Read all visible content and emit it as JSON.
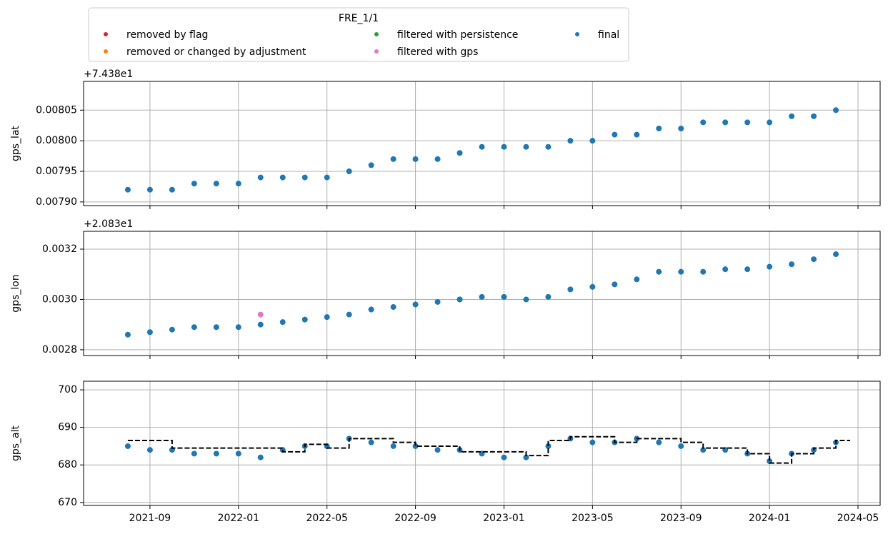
{
  "chart_data": [
    {
      "type": "scatter",
      "ylabel": "gps_lat",
      "offset_text": "+7.438e1",
      "legend_title": "FRE_1/1",
      "legend": "upper center",
      "xlim": [
        "2021-06",
        "2024-06"
      ],
      "xticks": [
        "2021-09",
        "2022-01",
        "2022-05",
        "2022-09",
        "2023-01",
        "2023-05",
        "2023-09",
        "2024-01",
        "2024-05"
      ],
      "show_xticklabels": false,
      "ylim": [
        0.007894,
        0.008097
      ],
      "yticks": [
        {
          "value": 0.0079,
          "label": "0.00790"
        },
        0.00795,
        {
          "value": 0.008,
          "label": "0.00800"
        },
        0.00805
      ],
      "grid": true,
      "series": [
        {
          "name": "removed by flag",
          "color": "#d62728",
          "x": [],
          "values": []
        },
        {
          "name": "removed or changed by adjustment",
          "color": "#ff7f0e",
          "x": [],
          "values": []
        },
        {
          "name": "filtered with persistence",
          "color": "#2ca02c",
          "x": [],
          "values": []
        },
        {
          "name": "filtered with gps",
          "color": "#e377c2",
          "x": [],
          "values": []
        },
        {
          "name": "final",
          "color": "#1f77b4",
          "x": [
            "2021-08",
            "2021-09",
            "2021-10",
            "2021-11",
            "2021-12",
            "2022-01",
            "2022-02",
            "2022-03",
            "2022-04",
            "2022-05",
            "2022-06",
            "2022-07",
            "2022-08",
            "2022-09",
            "2022-10",
            "2022-11",
            "2022-12",
            "2023-01",
            "2023-02",
            "2023-03",
            "2023-04",
            "2023-05",
            "2023-06",
            "2023-07",
            "2023-08",
            "2023-09",
            "2023-10",
            "2023-11",
            "2023-12",
            "2024-01",
            "2024-02",
            "2024-03",
            "2024-04"
          ],
          "values": [
            0.00792,
            0.00792,
            0.00792,
            0.00793,
            0.00793,
            0.00793,
            0.00794,
            0.00794,
            0.00794,
            0.00794,
            0.00795,
            0.00796,
            0.00797,
            0.00797,
            0.00797,
            0.00798,
            0.00799,
            0.00799,
            0.00799,
            0.00799,
            0.008,
            0.008,
            0.00801,
            0.00801,
            0.00802,
            0.00802,
            0.00803,
            0.00803,
            0.00803,
            0.00803,
            0.00804,
            0.00804,
            0.00805
          ]
        }
      ]
    },
    {
      "type": "scatter",
      "ylabel": "gps_lon",
      "offset_text": "+2.083e1",
      "xlim": [
        "2021-06",
        "2024-06"
      ],
      "xticks": [
        "2021-09",
        "2022-01",
        "2022-05",
        "2022-09",
        "2023-01",
        "2023-05",
        "2023-09",
        "2024-01",
        "2024-05"
      ],
      "show_xticklabels": false,
      "ylim": [
        0.002777,
        0.003271
      ],
      "yticks": [
        0.0028,
        {
          "value": 0.003,
          "label": "0.0030"
        },
        0.0032
      ],
      "grid": true,
      "series": [
        {
          "name": "filtered with persistence",
          "color": "#2ca02c",
          "x": [
            "2022-11"
          ],
          "values": [
            0.003
          ]
        },
        {
          "name": "filtered with gps",
          "color": "#e377c2",
          "x": [
            "2022-02",
            "2022-07"
          ],
          "values": [
            0.00294,
            0.00296
          ]
        },
        {
          "name": "final",
          "color": "#1f77b4",
          "x": [
            "2021-08",
            "2021-09",
            "2021-10",
            "2021-11",
            "2021-12",
            "2022-01",
            "2022-02",
            "2022-03",
            "2022-04",
            "2022-05",
            "2022-06",
            "2022-07",
            "2022-08",
            "2022-09",
            "2022-10",
            "2022-11",
            "2022-12",
            "2023-01",
            "2023-02",
            "2023-03",
            "2023-04",
            "2023-05",
            "2023-06",
            "2023-07",
            "2023-08",
            "2023-09",
            "2023-10",
            "2023-11",
            "2023-12",
            "2024-01",
            "2024-02",
            "2024-03",
            "2024-04"
          ],
          "values": [
            0.00286,
            0.00287,
            0.00288,
            0.00289,
            0.00289,
            0.00289,
            0.0029,
            0.00291,
            0.00292,
            0.00293,
            0.00294,
            0.00296,
            0.00297,
            0.00298,
            0.00299,
            0.003,
            0.00301,
            0.00301,
            0.003,
            0.00301,
            0.00304,
            0.00305,
            0.00306,
            0.00308,
            0.00311,
            0.00311,
            0.00311,
            0.00312,
            0.00312,
            0.00313,
            0.00314,
            0.00316,
            0.00318
          ]
        }
      ]
    },
    {
      "type": "scatter",
      "ylabel": "gps_alt",
      "xlim": [
        "2021-06",
        "2024-06"
      ],
      "xticks": [
        "2021-09",
        "2022-01",
        "2022-05",
        "2022-09",
        "2023-01",
        "2023-05",
        "2023-09",
        "2024-01",
        "2024-05"
      ],
      "show_xticklabels": true,
      "ylim": [
        669.2,
        702.3
      ],
      "yticks": [
        670,
        680,
        690,
        700
      ],
      "grid": true,
      "series": [
        {
          "name": "final",
          "color": "#1f77b4",
          "x": [
            "2021-08",
            "2021-09",
            "2021-10",
            "2021-11",
            "2021-12",
            "2022-01",
            "2022-02",
            "2022-03",
            "2022-04",
            "2022-05",
            "2022-06",
            "2022-07",
            "2022-08",
            "2022-09",
            "2022-10",
            "2022-11",
            "2022-12",
            "2023-01",
            "2023-02",
            "2023-03",
            "2023-04",
            "2023-05",
            "2023-06",
            "2023-07",
            "2023-08",
            "2023-09",
            "2023-10",
            "2023-11",
            "2023-12",
            "2024-01",
            "2024-02",
            "2024-03",
            "2024-04"
          ],
          "values": [
            685,
            684,
            684,
            683,
            683,
            683,
            682,
            684,
            685,
            685,
            687,
            686,
            685,
            685,
            684,
            684,
            683,
            682,
            682,
            685,
            687,
            686,
            686,
            687,
            686,
            685,
            684,
            684,
            683,
            681,
            683,
            684,
            686
          ]
        }
      ],
      "step_line": {
        "color": "#000000",
        "x": [
          "2021-08",
          "2021-10",
          "2022-03",
          "2022-04",
          "2022-05",
          "2022-06",
          "2022-08",
          "2022-09",
          "2022-11",
          "2023-02",
          "2023-03",
          "2023-04",
          "2023-06",
          "2023-07",
          "2023-09",
          "2023-10",
          "2023-12",
          "2024-01",
          "2024-02",
          "2024-03",
          "2024-04"
        ],
        "values": [
          686.5,
          684.5,
          683.5,
          685.5,
          684.5,
          687,
          686,
          685,
          683.5,
          682.5,
          686.5,
          687.5,
          686,
          687,
          686,
          684.5,
          683,
          680.5,
          683,
          684.5,
          686.5
        ]
      }
    }
  ]
}
